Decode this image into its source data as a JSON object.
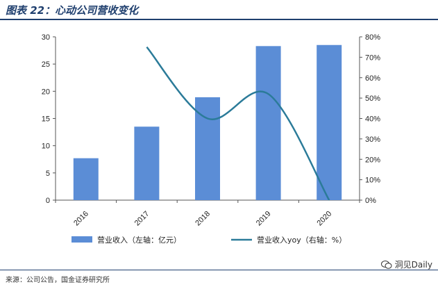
{
  "title": "图表 22：心动公司营收变化",
  "source": "来源：公司公告，国金证券研究所",
  "watermark": "洞见Daily",
  "chart_data": {
    "type": "bar",
    "categories": [
      "2016",
      "2017",
      "2018",
      "2019",
      "2020"
    ],
    "series": [
      {
        "name": "营业收入（左轴：亿元）",
        "type": "bar",
        "axis": "left",
        "values": [
          7.7,
          13.5,
          18.9,
          28.3,
          28.5
        ],
        "color": "#5b8dd6"
      },
      {
        "name": "营业收入yoy（右轴：%）",
        "type": "line",
        "axis": "right",
        "x": [
          "2017",
          "2018",
          "2019",
          "2020"
        ],
        "values": [
          0.75,
          0.4,
          0.52,
          0.0
        ],
        "color": "#2b7b99"
      }
    ],
    "left_axis": {
      "min": 0,
      "max": 30,
      "ticks": [
        "0",
        "5",
        "10",
        "15",
        "20",
        "25",
        "30"
      ]
    },
    "right_axis": {
      "min": 0,
      "max": 0.8,
      "ticks": [
        "0%",
        "10%",
        "20%",
        "30%",
        "40%",
        "50%",
        "60%",
        "70%",
        "80%"
      ]
    },
    "grid": false,
    "legend_position": "bottom"
  }
}
